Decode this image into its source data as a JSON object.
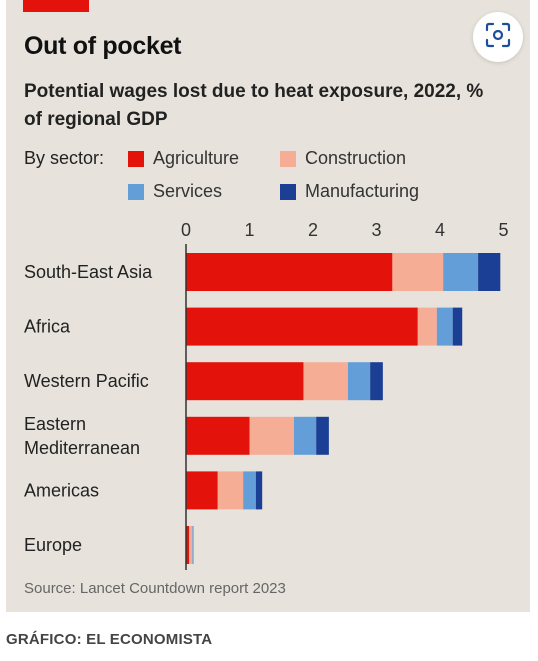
{
  "card": {
    "title": "Out of pocket",
    "subtitle": "Potential wages lost due to heat exposure, 2022, % of regional GDP",
    "legend_title": "By sector:",
    "source": "Source: Lancet Countdown report 2023",
    "scan_icon": "scan-icon"
  },
  "credit": "GRÁFICO: EL ECONOMISTA",
  "chart_data": {
    "type": "bar",
    "orientation": "horizontal",
    "stacked": true,
    "title": "Out of pocket",
    "subtitle": "Potential wages lost due to heat exposure, 2022, % of regional GDP",
    "categories": [
      "South-East Asia",
      "Africa",
      "Western Pacific",
      "Eastern Mediterranean",
      "Americas",
      "Europe"
    ],
    "category_lines": [
      [
        "South-East Asia"
      ],
      [
        "Africa"
      ],
      [
        "Western Pacific"
      ],
      [
        "Eastern",
        "Mediterranean"
      ],
      [
        "Americas"
      ],
      [
        "Europe"
      ]
    ],
    "series": [
      {
        "name": "Agriculture",
        "color": "#e3120b",
        "values": [
          3.25,
          3.65,
          1.85,
          1.0,
          0.5,
          0.05
        ]
      },
      {
        "name": "Construction",
        "color": "#f6ad96",
        "values": [
          0.8,
          0.3,
          0.7,
          0.7,
          0.4,
          0.05
        ]
      },
      {
        "name": "Services",
        "color": "#649ed8",
        "values": [
          0.55,
          0.25,
          0.35,
          0.35,
          0.2,
          0.02
        ]
      },
      {
        "name": "Manufacturing",
        "color": "#1b3f94",
        "values": [
          0.35,
          0.15,
          0.2,
          0.2,
          0.1,
          0.0
        ]
      }
    ],
    "xticks": [
      0,
      1,
      2,
      3,
      4,
      5
    ],
    "xlim": [
      0,
      5
    ],
    "legend_placement": "top",
    "grid": false
  }
}
